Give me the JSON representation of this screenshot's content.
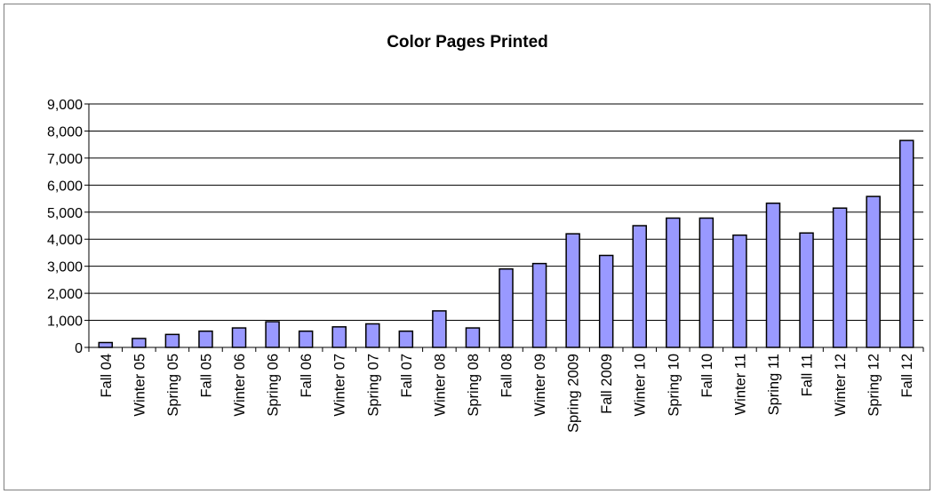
{
  "chart_data": {
    "type": "bar",
    "title": "Color Pages Printed",
    "xlabel": "",
    "ylabel": "",
    "ylim": [
      0,
      9000
    ],
    "yticks": [
      0,
      1000,
      2000,
      3000,
      4000,
      5000,
      6000,
      7000,
      8000,
      9000
    ],
    "ytick_labels": [
      "0",
      "1,000",
      "2,000",
      "3,000",
      "4,000",
      "5,000",
      "6,000",
      "7,000",
      "8,000",
      "9,000"
    ],
    "grid": true,
    "legend": "none",
    "categories": [
      "Fall 04",
      "Winter 05",
      "Spring 05",
      "Fall 05",
      "Winter 06",
      "Spring 06",
      "Fall 06",
      "Winter 07",
      "Spring 07",
      "Fall 07",
      "Winter 08",
      "Spring 08",
      "Fall 08",
      "Winter 09",
      "Spring 2009",
      "Fall 2009",
      "Winter 10",
      "Spring 10",
      "Fall 10",
      "Winter 11",
      "Spring 11",
      "Fall 11",
      "Winter 12",
      "Spring 12",
      "Fall 12"
    ],
    "values": [
      180,
      330,
      480,
      600,
      720,
      950,
      600,
      760,
      870,
      600,
      1350,
      720,
      2900,
      3100,
      4200,
      3400,
      4500,
      4780,
      4780,
      4150,
      5330,
      4230,
      5150,
      5580,
      7650
    ],
    "bar_color": "#9999ff",
    "bar_edge_color": "#000000"
  }
}
